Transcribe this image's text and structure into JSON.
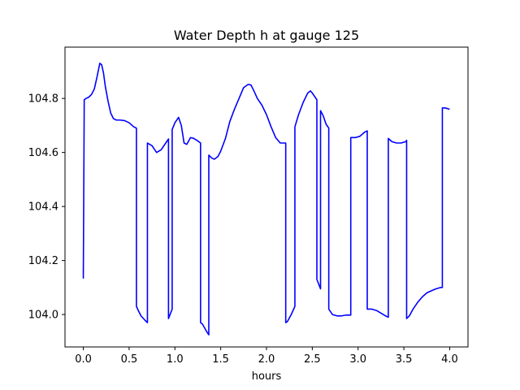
{
  "chart_data": {
    "type": "line",
    "title": "Water Depth h at gauge 125",
    "xlabel": "hours",
    "ylabel": "",
    "xlim": [
      -0.2,
      4.2
    ],
    "ylim": [
      103.88,
      104.99
    ],
    "x_ticks": [
      0.0,
      0.5,
      1.0,
      1.5,
      2.0,
      2.5,
      3.0,
      3.5,
      4.0
    ],
    "x_tick_labels": [
      "0.0",
      "0.5",
      "1.0",
      "1.5",
      "2.0",
      "2.5",
      "3.0",
      "3.5",
      "4.0"
    ],
    "y_ticks": [
      104.0,
      104.2,
      104.4,
      104.6,
      104.8
    ],
    "y_tick_labels": [
      "104.0",
      "104.2",
      "104.4",
      "104.6",
      "104.8"
    ],
    "grid": false,
    "legend": "none",
    "series": [
      {
        "color": "#0000ff",
        "x": [
          0.0,
          0.0,
          0.01,
          0.03,
          0.06,
          0.09,
          0.12,
          0.15,
          0.18,
          0.2,
          0.22,
          0.24,
          0.27,
          0.3,
          0.33,
          0.36,
          0.4,
          0.45,
          0.5,
          0.55,
          0.58,
          0.58,
          0.6,
          0.63,
          0.67,
          0.7,
          0.7,
          0.75,
          0.8,
          0.85,
          0.9,
          0.93,
          0.93,
          0.97,
          0.97,
          1.0,
          1.04,
          1.07,
          1.1,
          1.13,
          1.17,
          1.2,
          1.24,
          1.28,
          1.28,
          1.3,
          1.35,
          1.37,
          1.37,
          1.4,
          1.43,
          1.47,
          1.5,
          1.55,
          1.6,
          1.65,
          1.7,
          1.75,
          1.8,
          1.83,
          1.86,
          1.9,
          1.95,
          2.0,
          2.05,
          2.1,
          2.15,
          2.18,
          2.2,
          2.21,
          2.21,
          2.23,
          2.27,
          2.31,
          2.31,
          2.35,
          2.4,
          2.45,
          2.48,
          2.5,
          2.53,
          2.55,
          2.55,
          2.59,
          2.59,
          2.62,
          2.65,
          2.68,
          2.68,
          2.72,
          2.77,
          2.82,
          2.87,
          2.92,
          2.92,
          2.97,
          3.02,
          3.07,
          3.1,
          3.1,
          3.15,
          3.2,
          3.25,
          3.3,
          3.33,
          3.33,
          3.37,
          3.42,
          3.47,
          3.52,
          3.53,
          3.53,
          3.56,
          3.6,
          3.65,
          3.7,
          3.75,
          3.8,
          3.85,
          3.9,
          3.92,
          3.92,
          3.95,
          4.0
        ],
        "y": [
          104.17,
          104.135,
          104.795,
          104.8,
          104.805,
          104.815,
          104.835,
          104.88,
          104.93,
          104.925,
          104.895,
          104.845,
          104.79,
          104.745,
          104.725,
          104.72,
          104.72,
          104.718,
          104.71,
          104.695,
          104.69,
          104.03,
          104.015,
          103.995,
          103.98,
          103.97,
          104.635,
          104.625,
          104.6,
          104.61,
          104.635,
          104.65,
          103.985,
          104.02,
          104.685,
          104.71,
          104.73,
          104.7,
          104.635,
          104.63,
          104.655,
          104.653,
          104.645,
          104.635,
          103.97,
          103.965,
          103.935,
          103.925,
          104.59,
          104.58,
          104.575,
          104.585,
          104.605,
          104.65,
          104.715,
          104.76,
          104.8,
          104.84,
          104.852,
          104.85,
          104.83,
          104.8,
          104.775,
          104.74,
          104.695,
          104.655,
          104.635,
          104.635,
          104.635,
          104.635,
          103.97,
          103.975,
          104.0,
          104.03,
          104.695,
          104.74,
          104.785,
          104.82,
          104.828,
          104.82,
          104.805,
          104.795,
          104.13,
          104.095,
          104.755,
          104.735,
          104.705,
          104.69,
          104.02,
          104.0,
          103.995,
          103.995,
          103.998,
          103.998,
          104.655,
          104.655,
          104.66,
          104.675,
          104.68,
          104.02,
          104.02,
          104.015,
          104.005,
          103.995,
          103.99,
          104.652,
          104.64,
          104.635,
          104.635,
          104.64,
          104.645,
          103.985,
          103.995,
          104.02,
          104.045,
          104.065,
          104.08,
          104.088,
          104.095,
          104.1,
          104.1,
          104.765,
          104.765,
          104.76
        ]
      }
    ]
  }
}
